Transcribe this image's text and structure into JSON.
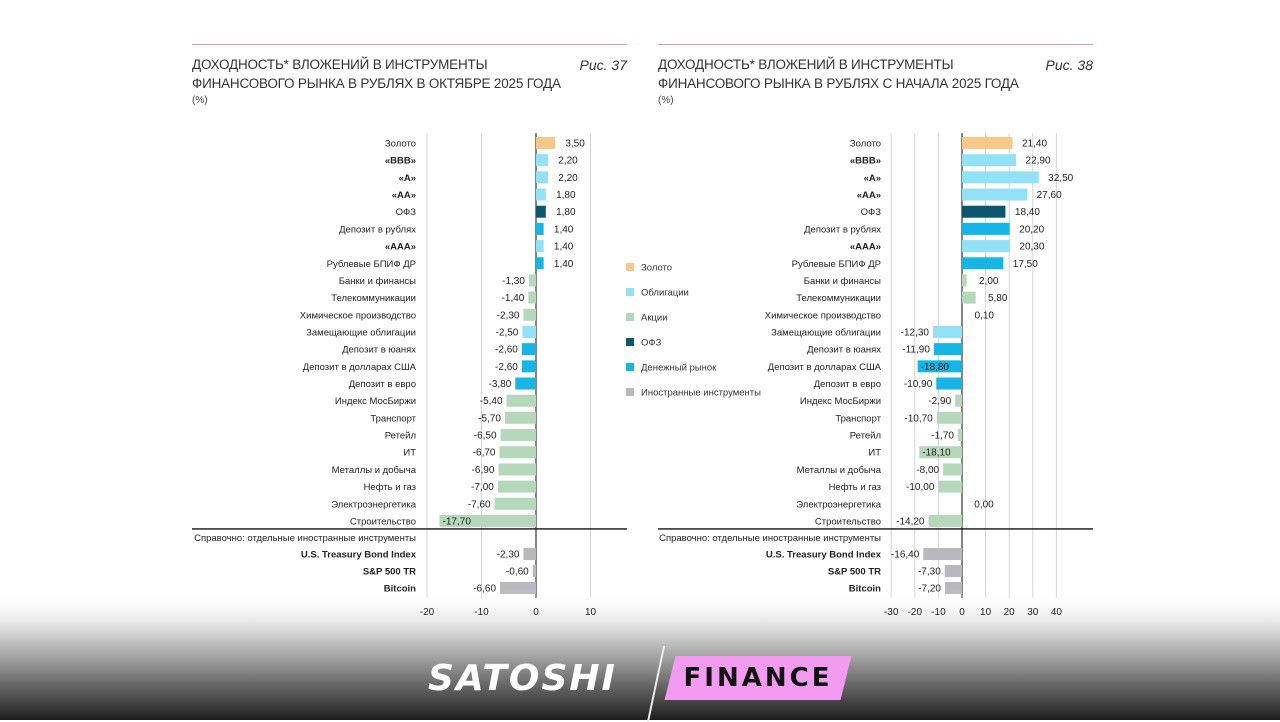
{
  "colors": {
    "gold": "#f8c88a",
    "bonds": "#92e1f6",
    "stocks": "#b6d8ba",
    "ofz": "#0c5670",
    "money": "#17b4e6",
    "foreign": "#b9b9bd"
  },
  "legend": [
    {
      "key": "gold",
      "label": "Золото"
    },
    {
      "key": "bonds",
      "label": "Облигации"
    },
    {
      "key": "stocks",
      "label": "Акции"
    },
    {
      "key": "ofz",
      "label": "ОФЗ"
    },
    {
      "key": "money",
      "label": "Денежный рынок"
    },
    {
      "key": "foreign",
      "label": "Иностранные инструменты"
    }
  ],
  "reference_label": "Справочно: отдельные иностранные инструменты",
  "logo": {
    "left": "SATOSHI",
    "right": "FINANCE"
  },
  "chart_data": [
    {
      "type": "bar",
      "orientation": "horizontal",
      "title_line1": "ДОХОДНОСТЬ* ВЛОЖЕНИЙ В ИНСТРУМЕНТЫ",
      "title_line2": "ФИНАНСОВОГО РЫНКА В РУБЛЯХ В ОКТЯБРЕ 2025 ГОДА",
      "unit": "(%)",
      "figure": "Рис. 37",
      "xlim": [
        -20,
        15
      ],
      "ticks": [
        -20,
        -10,
        0,
        10
      ],
      "grid": true,
      "categories": [
        "Золото",
        "«BBB»",
        "«A»",
        "«AA»",
        "ОФЗ",
        "Депозит в рублях",
        "«AAA»",
        "Рублевые БПИФ ДР",
        "Банки и финансы",
        "Телекоммуникации",
        "Химическое производство",
        "Замещающие облигации",
        "Депозит в юанях",
        "Депозит в долларах США",
        "Депозит в евро",
        "Индекс МосБиржи",
        "Транспорт",
        "Ретейл",
        "ИТ",
        "Металлы и добыча",
        "Нефть и газ",
        "Электроэнергетика",
        "Строительство"
      ],
      "groups": [
        "gold",
        "bonds",
        "bonds",
        "bonds",
        "ofz",
        "money",
        "bonds",
        "money",
        "stocks",
        "stocks",
        "stocks",
        "bonds",
        "money",
        "money",
        "money",
        "stocks",
        "stocks",
        "stocks",
        "stocks",
        "stocks",
        "stocks",
        "stocks",
        "stocks"
      ],
      "values": [
        3.5,
        2.2,
        2.2,
        1.8,
        1.8,
        1.4,
        1.4,
        1.4,
        -1.3,
        -1.4,
        -2.3,
        -2.5,
        -2.6,
        -2.6,
        -3.8,
        -5.4,
        -5.7,
        -6.5,
        -6.7,
        -6.9,
        -7.0,
        -7.6,
        -17.7
      ],
      "labels": [
        "3,50",
        "2,20",
        "2,20",
        "1,80",
        "1,80",
        "1,40",
        "1,40",
        "1,40",
        "-1,30",
        "-1,40",
        "-2,30",
        "-2,50",
        "-2,60",
        "-2,60",
        "-3,80",
        "-5,40",
        "-5,70",
        "-6,50",
        "-6,70",
        "-6,90",
        "-7,00",
        "-7,60",
        "-17,70"
      ],
      "reference": {
        "categories": [
          "U.S. Treasury Bond Index",
          "S&P 500 TR",
          "Bitcoin"
        ],
        "values": [
          -2.3,
          -0.6,
          -6.6
        ],
        "labels": [
          "-2,30",
          "-0,60",
          "-6,60"
        ]
      }
    },
    {
      "type": "bar",
      "orientation": "horizontal",
      "title_line1": "ДОХОДНОСТЬ* ВЛОЖЕНИЙ В ИНСТРУМЕНТЫ",
      "title_line2": "ФИНАНСОВОГО РЫНКА В РУБЛЯХ С НАЧАЛА 2025 ГОДА",
      "unit": "(%)",
      "figure": "Рис. 38",
      "xlim": [
        -35,
        55
      ],
      "ticks": [
        -30,
        -20,
        -10,
        0,
        10,
        20,
        30,
        40
      ],
      "grid": true,
      "categories": [
        "Золото",
        "«BBB»",
        "«A»",
        "«AA»",
        "ОФЗ",
        "Депозит в рублях",
        "«AAA»",
        "Рублевые БПИФ ДР",
        "Банки и финансы",
        "Телекоммуникации",
        "Химическое производство",
        "Замещающие облигации",
        "Депозит в юанях",
        "Депозит в долларах США",
        "Депозит в евро",
        "Индекс МосБиржи",
        "Транспорт",
        "Ретейл",
        "ИТ",
        "Металлы и добыча",
        "Нефть и газ",
        "Электроэнергетика",
        "Строительство"
      ],
      "groups": [
        "gold",
        "bonds",
        "bonds",
        "bonds",
        "ofz",
        "money",
        "bonds",
        "money",
        "stocks",
        "stocks",
        "stocks",
        "bonds",
        "money",
        "money",
        "money",
        "stocks",
        "stocks",
        "stocks",
        "stocks",
        "stocks",
        "stocks",
        "stocks",
        "stocks"
      ],
      "values": [
        21.4,
        22.9,
        32.5,
        27.6,
        18.4,
        20.2,
        20.3,
        17.5,
        2.0,
        5.8,
        0.1,
        -12.3,
        -11.9,
        -18.8,
        -10.9,
        -2.9,
        -10.7,
        -1.7,
        -18.1,
        -8.0,
        -10.0,
        0.0,
        -14.2
      ],
      "labels": [
        "21,40",
        "22,90",
        "32,50",
        "27,60",
        "18,40",
        "20,20",
        "20,30",
        "17,50",
        "2,00",
        "5,80",
        "0,10",
        "-12,30",
        "-11,90",
        "-18,80",
        "-10,90",
        "-2,90",
        "-10,70",
        "-1,70",
        "-18,10",
        "-8,00",
        "-10,00",
        "0,00",
        "-14,20"
      ],
      "reference": {
        "categories": [
          "U.S. Treasury Bond Index",
          "S&P 500 TR",
          "Bitcoin"
        ],
        "values": [
          -16.4,
          -7.3,
          -7.2
        ],
        "labels": [
          "-16,40",
          "-7,30",
          "-7,20"
        ]
      }
    }
  ]
}
